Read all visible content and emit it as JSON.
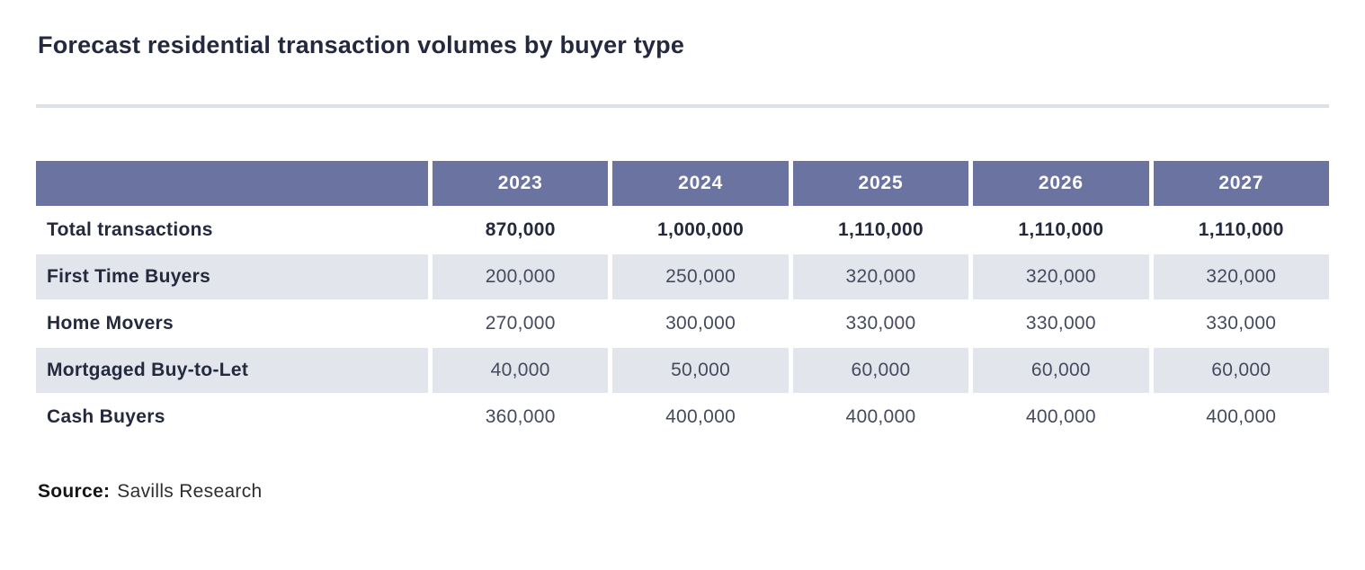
{
  "chart_data": {
    "type": "table",
    "title": "Forecast residential transaction volumes by buyer type",
    "columns": [
      "",
      "2023",
      "2024",
      "2025",
      "2026",
      "2027"
    ],
    "rows": [
      {
        "label": "Total transactions",
        "emphasis": true,
        "values": [
          "870,000",
          "1,000,000",
          "1,110,000",
          "1,110,000",
          "1,110,000"
        ]
      },
      {
        "label": "First Time Buyers",
        "emphasis": false,
        "values": [
          "200,000",
          "250,000",
          "320,000",
          "320,000",
          "320,000"
        ]
      },
      {
        "label": "Home Movers",
        "emphasis": false,
        "values": [
          "270,000",
          "300,000",
          "330,000",
          "330,000",
          "330,000"
        ]
      },
      {
        "label": "Mortgaged Buy-to-Let",
        "emphasis": false,
        "values": [
          "40,000",
          "50,000",
          "60,000",
          "60,000",
          "60,000"
        ]
      },
      {
        "label": "Cash Buyers",
        "emphasis": false,
        "values": [
          "360,000",
          "400,000",
          "400,000",
          "400,000",
          "400,000"
        ]
      }
    ],
    "source_label": "Source:",
    "source_value": "Savills Research",
    "layout": {
      "header_bg": "#6B74A1",
      "header_text": "#FFFFFF",
      "stripe_bg": "#E2E5EC",
      "title_color": "#24293E",
      "divider_color": "#DCE1E8",
      "grid": "off",
      "legend": "none"
    }
  }
}
